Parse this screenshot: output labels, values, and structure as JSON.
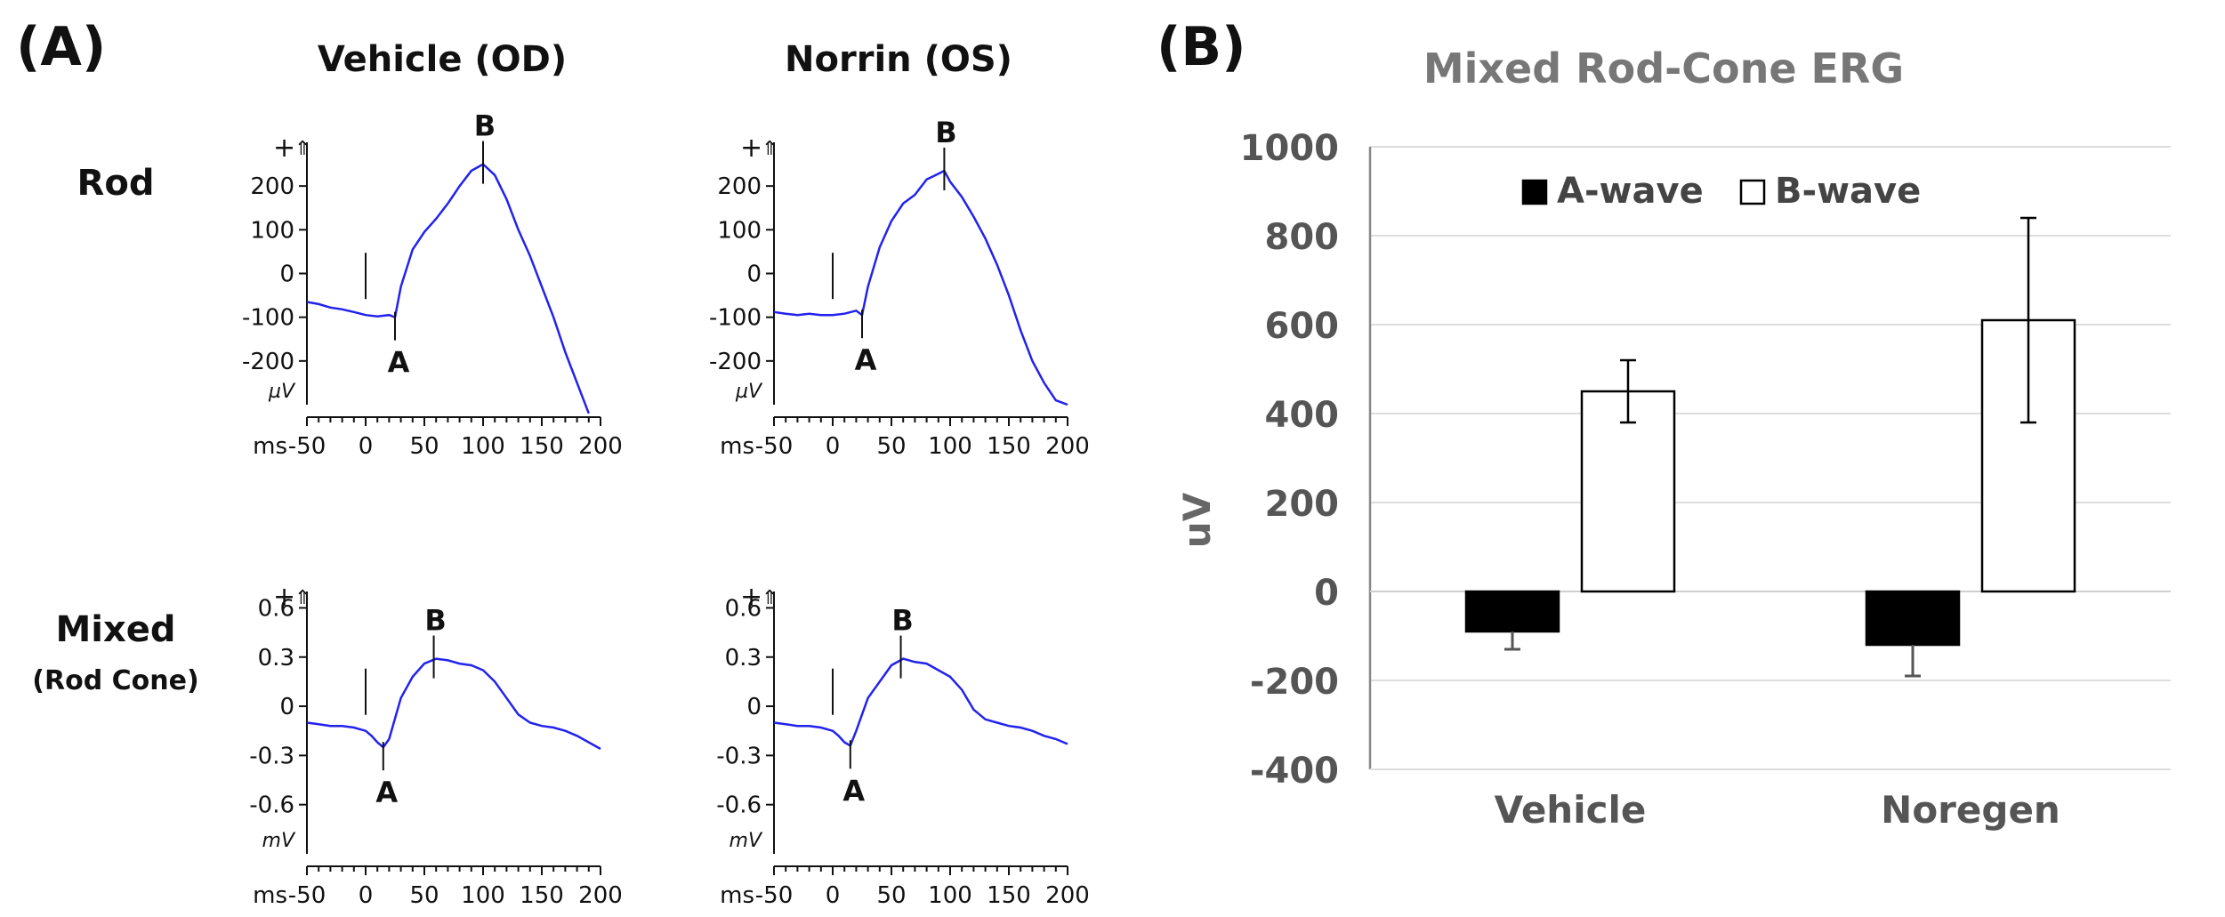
{
  "panel_a": {
    "label": "(A)",
    "columns": [
      "Vehicle (OD)",
      "Norrin (OS)"
    ],
    "rows": [
      {
        "label": "Rod",
        "sublabel": ""
      },
      {
        "label": "Mixed",
        "sublabel": "(Rod Cone)"
      }
    ]
  },
  "panel_b": {
    "label": "(B)"
  },
  "chart_data": [
    {
      "type": "line",
      "title": "Vehicle (OD) - Rod",
      "xlabel": "ms",
      "ylabel": "µV",
      "xlim": [
        -50,
        200
      ],
      "ylim": [
        -300,
        300
      ],
      "xticks": [
        -50,
        0,
        50,
        100,
        150,
        200
      ],
      "yticks": [
        200,
        100,
        0,
        -100,
        -200
      ],
      "ytick_labels": [
        "200",
        "100",
        "0",
        "-100",
        "-200"
      ],
      "y_top_label": "+",
      "x_unit_label": "ms",
      "y_unit_label": "µV",
      "stim_ms": 0,
      "color": "#2222ee",
      "x": [
        -50,
        -40,
        -30,
        -20,
        -10,
        0,
        10,
        20,
        25,
        30,
        40,
        50,
        60,
        70,
        80,
        90,
        100,
        110,
        120,
        130,
        140,
        150,
        160,
        170,
        180,
        190
      ],
      "y": [
        -65,
        -70,
        -78,
        -82,
        -88,
        -95,
        -98,
        -95,
        -100,
        -30,
        55,
        95,
        125,
        160,
        200,
        235,
        250,
        225,
        170,
        100,
        40,
        -30,
        -100,
        -180,
        -250,
        -320
      ],
      "annotations": [
        {
          "label": "A",
          "x": 25,
          "y": -100,
          "pos": "below"
        },
        {
          "label": "B",
          "x": 100,
          "y": 250,
          "pos": "above"
        }
      ]
    },
    {
      "type": "line",
      "title": "Norrin (OS) - Rod",
      "xlabel": "ms",
      "ylabel": "µV",
      "xlim": [
        -50,
        200
      ],
      "ylim": [
        -300,
        300
      ],
      "xticks": [
        -50,
        0,
        50,
        100,
        150,
        200
      ],
      "yticks": [
        200,
        100,
        0,
        -100,
        -200
      ],
      "ytick_labels": [
        "200",
        "100",
        "0",
        "-100",
        "-200"
      ],
      "y_top_label": "+",
      "x_unit_label": "ms",
      "y_unit_label": "µV",
      "stim_ms": 0,
      "color": "#2222ee",
      "x": [
        -50,
        -40,
        -30,
        -20,
        -10,
        0,
        10,
        20,
        25,
        30,
        40,
        50,
        60,
        70,
        80,
        90,
        95,
        100,
        110,
        120,
        130,
        140,
        150,
        160,
        170,
        180,
        190,
        200
      ],
      "y": [
        -88,
        -92,
        -95,
        -92,
        -95,
        -95,
        -92,
        -85,
        -95,
        -30,
        60,
        120,
        160,
        180,
        215,
        228,
        235,
        210,
        175,
        130,
        80,
        20,
        -50,
        -130,
        -200,
        -250,
        -290,
        -300
      ],
      "annotations": [
        {
          "label": "A",
          "x": 25,
          "y": -95,
          "pos": "below"
        },
        {
          "label": "B",
          "x": 95,
          "y": 235,
          "pos": "above"
        }
      ]
    },
    {
      "type": "line",
      "title": "Vehicle (OD) - Mixed",
      "xlabel": "ms",
      "ylabel": "mV",
      "xlim": [
        -50,
        200
      ],
      "ylim": [
        -0.9,
        0.7
      ],
      "xticks": [
        -50,
        0,
        50,
        100,
        150,
        200
      ],
      "yticks": [
        0.6,
        0.3,
        0,
        -0.3,
        -0.6
      ],
      "ytick_labels": [
        "0.6",
        "0.3",
        "0",
        "-0.3",
        "-0.6"
      ],
      "y_top_label": "+",
      "x_unit_label": "ms",
      "y_unit_label": "mV",
      "stim_ms": 0,
      "color": "#2222ee",
      "x": [
        -50,
        -40,
        -30,
        -20,
        -10,
        0,
        5,
        10,
        15,
        20,
        30,
        40,
        50,
        60,
        70,
        80,
        90,
        100,
        110,
        120,
        130,
        140,
        150,
        160,
        170,
        180,
        190,
        200
      ],
      "y": [
        -0.1,
        -0.11,
        -0.12,
        -0.12,
        -0.13,
        -0.15,
        -0.18,
        -0.22,
        -0.25,
        -0.2,
        0.05,
        0.18,
        0.26,
        0.29,
        0.28,
        0.26,
        0.25,
        0.22,
        0.15,
        0.05,
        -0.05,
        -0.1,
        -0.12,
        -0.13,
        -0.15,
        -0.18,
        -0.22,
        -0.26
      ],
      "annotations": [
        {
          "label": "A",
          "x": 15,
          "y": -0.25,
          "pos": "below"
        },
        {
          "label": "B",
          "x": 58,
          "y": 0.29,
          "pos": "above"
        }
      ]
    },
    {
      "type": "line",
      "title": "Norrin (OS) - Mixed",
      "xlabel": "ms",
      "ylabel": "mV",
      "xlim": [
        -50,
        200
      ],
      "ylim": [
        -0.9,
        0.7
      ],
      "xticks": [
        -50,
        0,
        50,
        100,
        150,
        200
      ],
      "yticks": [
        0.6,
        0.3,
        0,
        -0.3,
        -0.6
      ],
      "ytick_labels": [
        "0.6",
        "0.3",
        "0",
        "-0.3",
        "-0.6"
      ],
      "y_top_label": "+",
      "x_unit_label": "ms",
      "y_unit_label": "mV",
      "stim_ms": 0,
      "color": "#2222ee",
      "x": [
        -50,
        -40,
        -30,
        -20,
        -10,
        0,
        5,
        10,
        15,
        20,
        30,
        40,
        50,
        60,
        70,
        80,
        90,
        100,
        110,
        120,
        130,
        140,
        150,
        160,
        170,
        180,
        190,
        200
      ],
      "y": [
        -0.1,
        -0.11,
        -0.12,
        -0.12,
        -0.13,
        -0.15,
        -0.18,
        -0.22,
        -0.24,
        -0.15,
        0.05,
        0.15,
        0.25,
        0.29,
        0.27,
        0.26,
        0.22,
        0.18,
        0.1,
        -0.02,
        -0.08,
        -0.1,
        -0.12,
        -0.13,
        -0.15,
        -0.18,
        -0.2,
        -0.23
      ],
      "annotations": [
        {
          "label": "A",
          "x": 15,
          "y": -0.24,
          "pos": "below"
        },
        {
          "label": "B",
          "x": 58,
          "y": 0.29,
          "pos": "above"
        }
      ]
    },
    {
      "type": "bar",
      "title": "Mixed Rod-Cone ERG",
      "xlabel": "",
      "ylabel": "uV",
      "ylim": [
        -400,
        1000
      ],
      "yticks": [
        1000,
        800,
        600,
        400,
        200,
        0,
        -200,
        -400
      ],
      "categories": [
        "Vehicle",
        "Noregen"
      ],
      "grid": true,
      "legend_position": "top",
      "series": [
        {
          "name": "A-wave",
          "color": "#000000",
          "values": [
            -90,
            -120
          ],
          "errors": [
            40,
            70
          ]
        },
        {
          "name": "B-wave",
          "color": "#ffffff",
          "values": [
            450,
            610
          ],
          "errors": [
            70,
            230
          ]
        }
      ]
    }
  ]
}
